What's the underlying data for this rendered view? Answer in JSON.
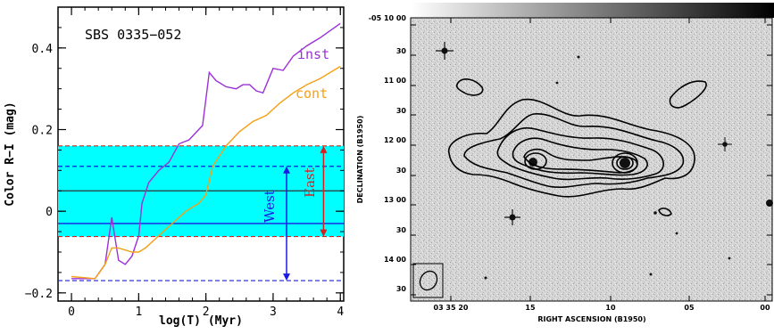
{
  "left_chart": {
    "title": "SBS 0335−052",
    "xlabel": "log(T)  (Myr)",
    "ylabel": "Color R−I (mag)",
    "xlim": [
      -0.2,
      4.05
    ],
    "ylim": [
      -0.22,
      0.5
    ],
    "xticks": [
      "0",
      "1",
      "2",
      "3",
      "4"
    ],
    "yticks": [
      "−0.2",
      "0",
      "0.2",
      "0.4"
    ],
    "ytick_values": [
      -0.2,
      0,
      0.2,
      0.4
    ],
    "xtick_values": [
      0,
      1,
      2,
      3,
      4
    ],
    "band": {
      "low": -0.062,
      "high": 0.16,
      "color": "#00ffff"
    },
    "lines": {
      "black_mid": 0.05,
      "blue_solid": -0.03,
      "blue_dash_top": 0.11,
      "blue_dash_bottom": -0.17,
      "red_dash_top": 0.16,
      "red_dash_bottom": -0.062
    },
    "annotations": {
      "west": "West",
      "east": "East",
      "inst": "inst",
      "cont": "cont"
    },
    "colors": {
      "inst": "#9b30d9",
      "cont": "#f4a015",
      "west": "#1a1ae6",
      "east": "#d42020",
      "band": "#00ffff"
    }
  },
  "chart_data": {
    "type": "line",
    "title": "SBS 0335−052",
    "xlabel": "log(T)  (Myr)",
    "ylabel": "Color R−I (mag)",
    "xlim": [
      -0.2,
      4.05
    ],
    "ylim": [
      -0.22,
      0.5
    ],
    "series": [
      {
        "name": "inst",
        "color": "#9b30d9",
        "x": [
          0,
          0.35,
          0.5,
          0.6,
          0.7,
          0.8,
          0.9,
          1.0,
          1.05,
          1.15,
          1.3,
          1.45,
          1.6,
          1.75,
          1.95,
          2.05,
          2.15,
          2.3,
          2.45,
          2.55,
          2.65,
          2.75,
          2.85,
          3.0,
          3.15,
          3.3,
          3.5,
          3.7,
          4.0
        ],
        "y": [
          -0.165,
          -0.165,
          -0.13,
          -0.015,
          -0.12,
          -0.13,
          -0.11,
          -0.06,
          0.02,
          0.07,
          0.1,
          0.12,
          0.165,
          0.175,
          0.21,
          0.34,
          0.32,
          0.305,
          0.3,
          0.31,
          0.31,
          0.295,
          0.29,
          0.35,
          0.345,
          0.38,
          0.405,
          0.425,
          0.46
        ]
      },
      {
        "name": "cont",
        "color": "#f4a015",
        "x": [
          0,
          0.35,
          0.5,
          0.6,
          0.7,
          0.8,
          0.9,
          1.0,
          1.1,
          1.3,
          1.5,
          1.7,
          1.9,
          2.0,
          2.1,
          2.3,
          2.5,
          2.7,
          2.9,
          3.1,
          3.3,
          3.5,
          3.7,
          4.0
        ],
        "y": [
          -0.16,
          -0.165,
          -0.13,
          -0.09,
          -0.09,
          -0.095,
          -0.1,
          -0.1,
          -0.09,
          -0.06,
          -0.03,
          0.0,
          0.02,
          0.04,
          0.11,
          0.16,
          0.195,
          0.22,
          0.235,
          0.265,
          0.29,
          0.31,
          0.325,
          0.355
        ]
      }
    ]
  },
  "right_chart": {
    "xlabel": "RIGHT ASCENSION (B1950)",
    "ylabel": "DECLINATION (B1950)",
    "yticks": [
      "-05 10 00",
      "30",
      "11 00",
      "30",
      "12 00",
      "30",
      "13 00",
      "30",
      "14 00",
      "30"
    ],
    "xticks": [
      "03 35 20",
      "15",
      "10",
      "05",
      "00"
    ]
  }
}
